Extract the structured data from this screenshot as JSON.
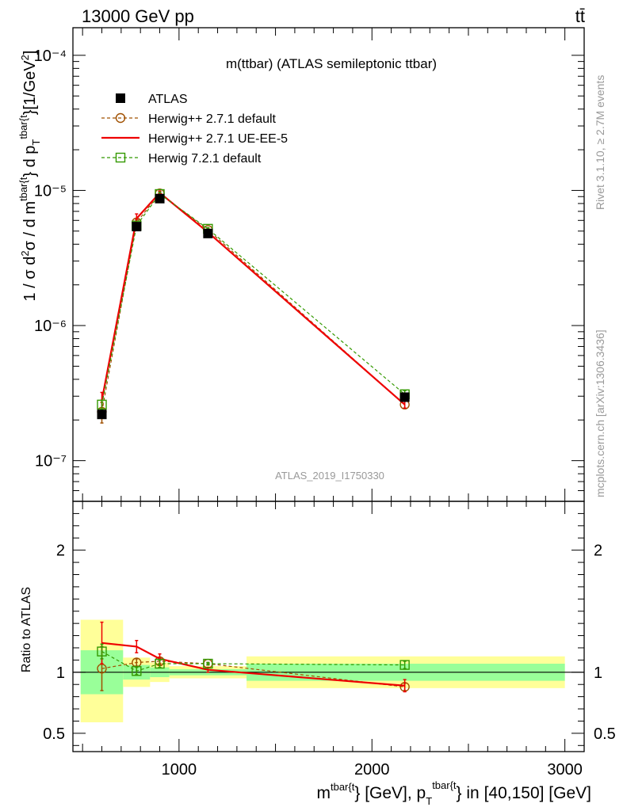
{
  "header": {
    "energy_label": "13000 GeV pp",
    "process_label": "tt̄"
  },
  "side_labels": {
    "rivet": "Rivet 3.1.10, ≥ 2.7M events",
    "mcplots": "mcplots.cern.ch [arXiv:1306.3436]"
  },
  "chart_data": [
    {
      "type": "line",
      "title": "m(ttbar) (ATLAS semileptonic ttbar)",
      "watermark": "ATLAS_2019_I1750330",
      "ylabel": "1 / σ d²σ / d m^{tbar{t}} d p_T^{tbar{t}}[1/GeV²]",
      "yscale": "log",
      "xlim": [
        450,
        3100
      ],
      "ylim": [
        5e-08,
        0.00016
      ],
      "y_ticks": [
        {
          "value": 1e-07,
          "label": "10⁻⁷"
        },
        {
          "value": 1e-06,
          "label": "10⁻⁶"
        },
        {
          "value": 1e-05,
          "label": "10⁻⁵"
        },
        {
          "value": 0.0001,
          "label": "10⁻⁴"
        }
      ],
      "legend_placement": "top-left",
      "series": [
        {
          "name": "ATLAS",
          "color": "#000000",
          "marker": "filled-square",
          "x": [
            600,
            780,
            900,
            1150,
            2170
          ],
          "y": [
            2.2e-07,
            5.4e-06,
            8.7e-06,
            4.8e-06,
            2.95e-07
          ]
        },
        {
          "name": "Herwig++ 2.7.1 default",
          "color": "#a05000",
          "marker": "open-circle",
          "dash": true,
          "x": [
            600,
            780,
            900,
            1150,
            2170
          ],
          "y": [
            2.3e-07,
            5.8e-06,
            9.5e-06,
            5.1e-06,
            2.6e-07
          ],
          "yerr": [
            4e-08,
            3e-07,
            3e-07,
            1e-07,
            1.5e-08
          ]
        },
        {
          "name": "Herwig++ 2.7.1 UE-EE-5",
          "color": "#ee0000",
          "marker": "none",
          "x": [
            600,
            780,
            900,
            1150,
            2170
          ],
          "y": [
            2.8e-07,
            6.2e-06,
            9.6e-06,
            4.9e-06,
            2.6e-07
          ],
          "yerr": [
            4e-08,
            5e-07,
            3e-07,
            1e-07,
            1.5e-08
          ]
        },
        {
          "name": "Herwig 7.2.1 default",
          "color": "#339900",
          "marker": "open-square",
          "dash": true,
          "x": [
            600,
            780,
            900,
            1150,
            2170
          ],
          "y": [
            2.6e-07,
            5.5e-06,
            9.4e-06,
            5.2e-06,
            3.1e-07
          ],
          "yerr": [
            2e-08,
            2e-07,
            3e-07,
            1e-07,
            2e-08
          ]
        }
      ]
    },
    {
      "type": "line",
      "ylabel": "Ratio to ATLAS",
      "xlabel": "m^{tbar{t}} [GeV], p_T^{tbar{t}} in [40,150] [GeV]",
      "xlim": [
        450,
        3100
      ],
      "ylim": [
        0.35,
        2.4
      ],
      "x_ticks": [
        {
          "value": 1000,
          "label": "1000"
        },
        {
          "value": 2000,
          "label": "2000"
        },
        {
          "value": 3000,
          "label": "3000"
        }
      ],
      "y_ticks": [
        {
          "value": 0.5,
          "label": "0.5"
        },
        {
          "value": 1,
          "label": "1"
        },
        {
          "value": 2,
          "label": "2"
        }
      ],
      "uncertainty_bands": [
        {
          "x0": 490,
          "x1": 710,
          "yellow": [
            0.59,
            1.43
          ],
          "green": [
            0.82,
            1.18
          ]
        },
        {
          "x0": 710,
          "x1": 850,
          "yellow": [
            0.88,
            1.12
          ],
          "green": [
            0.94,
            1.06
          ]
        },
        {
          "x0": 850,
          "x1": 950,
          "yellow": [
            0.92,
            1.08
          ],
          "green": [
            0.96,
            1.04
          ]
        },
        {
          "x0": 950,
          "x1": 1350,
          "yellow": [
            0.95,
            1.05
          ],
          "green": [
            0.975,
            1.025
          ]
        },
        {
          "x0": 1350,
          "x1": 3000,
          "yellow": [
            0.87,
            1.13
          ],
          "green": [
            0.93,
            1.07
          ]
        }
      ],
      "series": [
        {
          "name": "Herwig++ 2.7.1 default",
          "color": "#a05000",
          "marker": "open-circle",
          "dash": true,
          "x": [
            600,
            780,
            900,
            1150,
            2170
          ],
          "y": [
            1.03,
            1.08,
            1.09,
            1.07,
            0.88
          ],
          "yerr": [
            0.18,
            0.03,
            0.03,
            0.01,
            0.03
          ]
        },
        {
          "name": "Herwig++ 2.7.1 UE-EE-5",
          "color": "#ee0000",
          "marker": "none",
          "x": [
            600,
            780,
            900,
            1150,
            2170
          ],
          "y": [
            1.24,
            1.21,
            1.11,
            1.02,
            0.89
          ],
          "yerr": [
            0.17,
            0.05,
            0.04,
            0.02,
            0.05
          ]
        },
        {
          "name": "Herwig 7.2.1 default",
          "color": "#339900",
          "marker": "open-square",
          "dash": true,
          "x": [
            600,
            780,
            900,
            1150,
            2170
          ],
          "y": [
            1.17,
            1.01,
            1.07,
            1.07,
            1.06
          ],
          "yerr": [
            0.06,
            0.03,
            0.03,
            0.01,
            0.03
          ]
        }
      ]
    }
  ]
}
